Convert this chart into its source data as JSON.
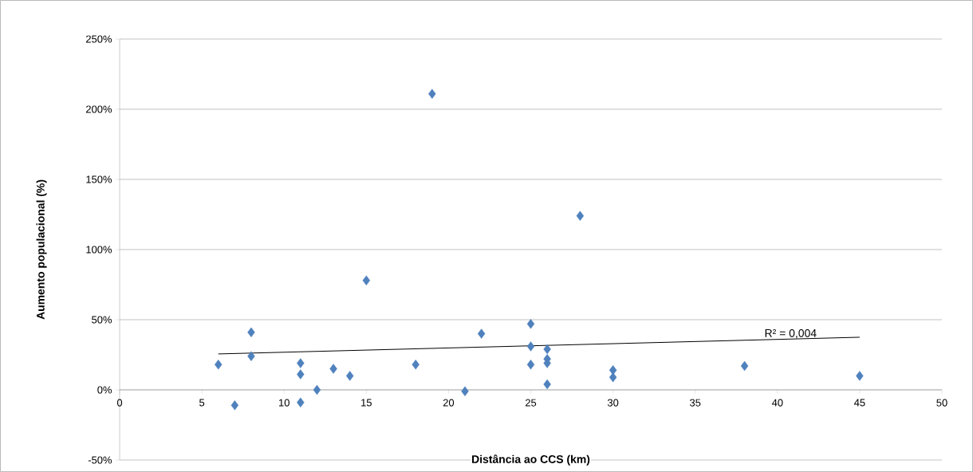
{
  "chart_data": {
    "type": "scatter",
    "xlabel": "Distância ao CCS (km)",
    "ylabel": "Aumento populacional (%)",
    "x": [
      6,
      7,
      8,
      8,
      11,
      11,
      11,
      12,
      13,
      14,
      15,
      18,
      19,
      21,
      22,
      25,
      25,
      25,
      26,
      26,
      26,
      26,
      28,
      30,
      30,
      38,
      45
    ],
    "series": [
      {
        "color": "#4f81bd",
        "values": [
          18,
          -11,
          41,
          24,
          19,
          11,
          -9,
          0,
          15,
          10,
          78,
          18,
          211,
          -1,
          40,
          47,
          31,
          18,
          29,
          22,
          19,
          4,
          124,
          14,
          9,
          17,
          10
        ]
      },
      {
        "type": "line",
        "color": "#000000",
        "marker": "none",
        "x": [
          6,
          45
        ],
        "values": [
          25.6,
          37.5
        ]
      }
    ],
    "marker": "diamond",
    "annotations": [
      {
        "text": "R² = 0,004",
        "x": 40.8,
        "y": 36
      }
    ],
    "xlim": [
      0,
      50
    ],
    "xticks": [
      0,
      5,
      10,
      15,
      20,
      25,
      30,
      35,
      40,
      45,
      50
    ],
    "ylim": [
      -50,
      250
    ],
    "yticks": [
      {
        "value": -50,
        "label": "-50%"
      },
      {
        "value": 0,
        "label": "0%"
      },
      {
        "value": 50,
        "label": "50%"
      },
      {
        "value": 100,
        "label": "100%"
      },
      {
        "value": 150,
        "label": "150%"
      },
      {
        "value": 200,
        "label": "200%"
      },
      {
        "value": 250,
        "label": "250%"
      }
    ],
    "grid": "y"
  }
}
